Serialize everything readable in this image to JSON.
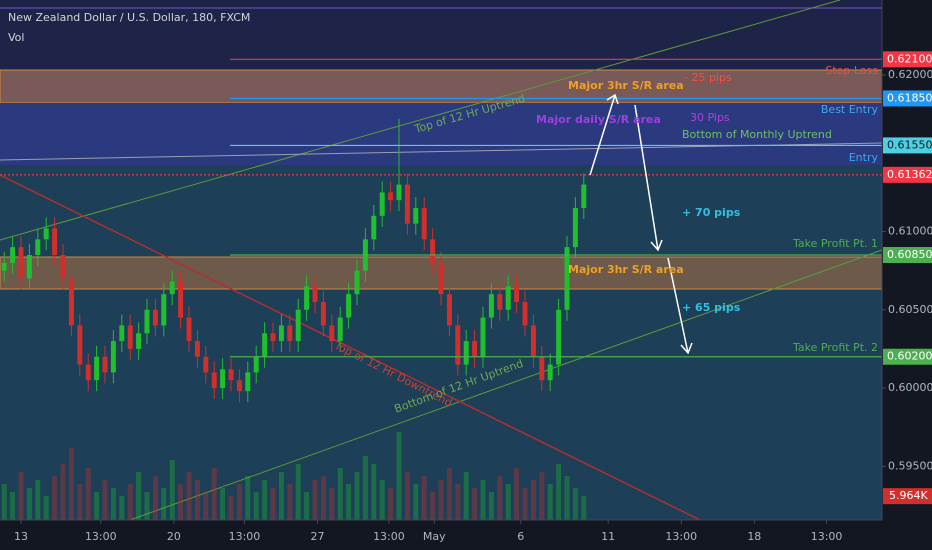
{
  "chart_data": {
    "type": "candlestick",
    "title": "New Zealand Dollar / U.S. Dollar, 180, FXCM",
    "subtitle": "Vol",
    "xlim": [
      -0.5,
      104.5
    ],
    "xticks": [
      {
        "value": 2,
        "label": "13"
      },
      {
        "value": 11.5,
        "label": "13:00"
      },
      {
        "value": 20.2,
        "label": "20"
      },
      {
        "value": 28.6,
        "label": "13:00"
      },
      {
        "value": 37.3,
        "label": "27"
      },
      {
        "value": 45.8,
        "label": "13:00"
      },
      {
        "value": 51.2,
        "label": "May"
      },
      {
        "value": 61.5,
        "label": "6"
      },
      {
        "value": 71.9,
        "label": "11"
      },
      {
        "value": 80.6,
        "label": "13:00"
      },
      {
        "value": 89.3,
        "label": "18"
      },
      {
        "value": 97.9,
        "label": "13:00"
      }
    ],
    "ylim": [
      0.59157,
      0.62479
    ],
    "yticks": [
      {
        "value": 0.62,
        "label": "0.62000"
      },
      {
        "value": 0.61,
        "label": "0.61000"
      },
      {
        "value": 0.605,
        "label": "0.60500"
      },
      {
        "value": 0.6,
        "label": "0.60000"
      },
      {
        "value": 0.595,
        "label": "0.59500"
      }
    ],
    "y2lim": [
      0,
      130000
    ],
    "up_color": "#1fbf2e",
    "down_color": "#d12f2c",
    "open": [
      0.6075,
      0.608,
      0.609,
      0.607,
      0.6085,
      0.6095,
      0.6102,
      0.6085,
      0.607,
      0.604,
      0.6015,
      0.6005,
      0.602,
      0.601,
      0.603,
      0.604,
      0.6025,
      0.6035,
      0.605,
      0.604,
      0.606,
      0.6068,
      0.6045,
      0.603,
      0.602,
      0.601,
      0.6,
      0.6012,
      0.6005,
      0.5998,
      0.601,
      0.602,
      0.6035,
      0.603,
      0.604,
      0.603,
      0.605,
      0.6065,
      0.6055,
      0.604,
      0.603,
      0.6045,
      0.606,
      0.6075,
      0.6095,
      0.611,
      0.6125,
      0.612,
      0.613,
      0.6105,
      0.6115,
      0.6095,
      0.608,
      0.606,
      0.604,
      0.6015,
      0.603,
      0.602,
      0.6045,
      0.606,
      0.605,
      0.6065,
      0.6055,
      0.604,
      0.602,
      0.6005,
      0.6015,
      0.605,
      0.609,
      0.6115
    ],
    "high": [
      0.6087,
      0.6097,
      0.6097,
      0.6092,
      0.6102,
      0.6109,
      0.6109,
      0.6092,
      0.6077,
      0.6047,
      0.6022,
      0.6027,
      0.6027,
      0.6037,
      0.6047,
      0.6047,
      0.6042,
      0.6057,
      0.6057,
      0.6067,
      0.6075,
      0.6075,
      0.6052,
      0.6037,
      0.6027,
      0.6017,
      0.6019,
      0.6019,
      0.6012,
      0.6017,
      0.6027,
      0.6042,
      0.6042,
      0.6047,
      0.6047,
      0.6057,
      0.6072,
      0.6072,
      0.6062,
      0.6047,
      0.6052,
      0.6067,
      0.6082,
      0.6102,
      0.6117,
      0.6132,
      0.6132,
      0.6172,
      0.6137,
      0.6122,
      0.6122,
      0.6102,
      0.6087,
      0.6067,
      0.6047,
      0.6037,
      0.6037,
      0.6052,
      0.6067,
      0.6067,
      0.6072,
      0.6072,
      0.6062,
      0.6047,
      0.6027,
      0.6022,
      0.6057,
      0.6097,
      0.6122,
      0.6137
    ],
    "low": [
      0.6068,
      0.6073,
      0.6063,
      0.6063,
      0.6078,
      0.6088,
      0.6078,
      0.6063,
      0.6033,
      0.6008,
      0.5998,
      0.5998,
      0.6003,
      0.6003,
      0.6023,
      0.6018,
      0.6018,
      0.6028,
      0.6033,
      0.6033,
      0.6053,
      0.6038,
      0.6023,
      0.6013,
      0.6003,
      0.5993,
      0.5993,
      0.5998,
      0.5991,
      0.5991,
      0.6003,
      0.6013,
      0.6023,
      0.6023,
      0.6023,
      0.6023,
      0.6043,
      0.6048,
      0.6033,
      0.6023,
      0.6023,
      0.6038,
      0.6053,
      0.6068,
      0.6088,
      0.6103,
      0.6113,
      0.6113,
      0.6098,
      0.6098,
      0.6088,
      0.6073,
      0.6053,
      0.6033,
      0.6008,
      0.6008,
      0.6013,
      0.6013,
      0.6038,
      0.6043,
      0.6043,
      0.6048,
      0.6033,
      0.6013,
      0.5998,
      0.5998,
      0.6008,
      0.6043,
      0.6083,
      0.6108
    ],
    "close": [
      0.608,
      0.609,
      0.607,
      0.6085,
      0.6095,
      0.6102,
      0.6085,
      0.607,
      0.604,
      0.6015,
      0.6005,
      0.602,
      0.601,
      0.603,
      0.604,
      0.6025,
      0.6035,
      0.605,
      0.604,
      0.606,
      0.6068,
      0.6045,
      0.603,
      0.602,
      0.601,
      0.6,
      0.6012,
      0.6005,
      0.5998,
      0.601,
      0.602,
      0.6035,
      0.603,
      0.604,
      0.603,
      0.605,
      0.6065,
      0.6055,
      0.604,
      0.603,
      0.6045,
      0.606,
      0.6075,
      0.6095,
      0.611,
      0.6125,
      0.612,
      0.613,
      0.6105,
      0.6115,
      0.6095,
      0.608,
      0.606,
      0.604,
      0.6015,
      0.603,
      0.602,
      0.6045,
      0.606,
      0.605,
      0.6065,
      0.6055,
      0.604,
      0.602,
      0.6005,
      0.6015,
      0.605,
      0.609,
      0.6115,
      0.613
    ],
    "volume": [
      9000,
      7000,
      12000,
      8000,
      10000,
      6000,
      11000,
      14000,
      18000,
      9000,
      13000,
      7000,
      10000,
      8000,
      6000,
      9000,
      12000,
      7000,
      11000,
      8000,
      15000,
      9000,
      12000,
      10000,
      7000,
      13000,
      8000,
      6000,
      9000,
      11000,
      7000,
      10000,
      8000,
      12000,
      9000,
      14000,
      7000,
      10000,
      11000,
      8000,
      13000,
      9000,
      12000,
      16000,
      14000,
      10000,
      8000,
      22000,
      12000,
      9000,
      11000,
      7000,
      10000,
      13000,
      9000,
      12000,
      8000,
      10000,
      7000,
      11000,
      9000,
      13000,
      8000,
      10000,
      12000,
      9000,
      14000,
      11000,
      8000,
      5964
    ],
    "volume_label": "5.964K",
    "levels": [
      {
        "value": 0.621,
        "label": "0.62100",
        "color": "#f23645"
      },
      {
        "value": 0.6185,
        "label": "0.61850",
        "color": "#2196f3"
      },
      {
        "value": 0.6155,
        "label": "0.61550",
        "color": "#4dd0e1"
      },
      {
        "value": 0.61362,
        "label": "0.61362",
        "color": "#f23645"
      },
      {
        "value": 0.6085,
        "label": "0.60850",
        "color": "#4caf50"
      },
      {
        "value": 0.602,
        "label": "0.60200",
        "color": "#4caf50"
      }
    ],
    "annotations": [
      "Stop Loss",
      "Best Entry",
      "Bottom of Monthly Uptrend",
      "Entry",
      "Take Profit Pt. 1",
      "Take Profit Pt. 2",
      "Major 3hr S/R area",
      "Major 3hr S/R area",
      "- 25 pips",
      "30 Pips",
      "Major daily S/R area",
      "+ 70 pips",
      "+ 65 pips",
      "Top of 12 Hr Uptrend",
      "Top of 12 Hr Downtrend",
      "Bottom of 12 Hr Uptrend"
    ]
  }
}
